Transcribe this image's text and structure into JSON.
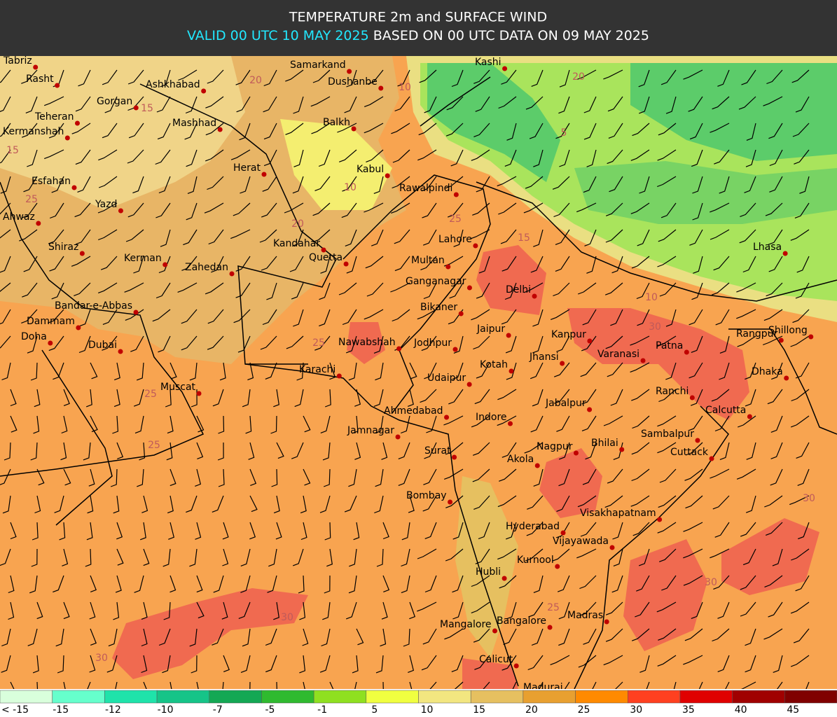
{
  "header": {
    "title": "TEMPERATURE 2m and SURFACE WIND",
    "valid": "VALID 00 UTC 10 MAY 2025",
    "based": "BASED ON 00 UTC DATA ON 09 MAY 2025"
  },
  "cities": [
    "Tabriz",
    "Rasht",
    "Gorgan",
    "Ashkhabad",
    "Samarkand",
    "Dushanbe",
    "Kashi",
    "Teheran",
    "Kermanshah",
    "Mashhad",
    "Balkh",
    "Herat",
    "Kabul",
    "Esfahan",
    "Rawalpindi",
    "Yazd",
    "Ahwaz",
    "Lahore",
    "Kandahar",
    "Quetta",
    "Multan",
    "Shiraz",
    "Kerman",
    "Zahedan",
    "Ganganagar",
    "Delhi",
    "Lhasa",
    "Bikaner",
    "Bandar-e-Abbas",
    "Dammam",
    "Doha",
    "Dubai",
    "Jaipur",
    "Kanpur",
    "Rangpur",
    "Shillong",
    "Patna",
    "Nawabshah",
    "Jodhpur",
    "Varanasi",
    "Jhansi",
    "Kotah",
    "Karachi",
    "Dhaka",
    "Udaipur",
    "Muscat",
    "Ranchi",
    "Jabalpur",
    "Calcutta",
    "Ahmedabad",
    "Indore",
    "Jamnagar",
    "Sambalpur",
    "Surat",
    "Nagpur",
    "Bhilai",
    "Cuttack",
    "Akola",
    "Bombay",
    "Visakhapatnam",
    "Hyderabad",
    "Vijayawada",
    "Kurnool",
    "Hubli",
    "Madras",
    "Mangalore",
    "Bangalore",
    "Calicut",
    "Madurai"
  ],
  "contour_labels": [
    "20",
    "15",
    "15",
    "25",
    "10",
    "10",
    "20",
    "25",
    "15",
    "30",
    "25",
    "25",
    "25",
    "30",
    "30",
    "30",
    "25",
    "10",
    "5",
    "20",
    "30"
  ],
  "legend": {
    "items": [
      {
        "label": "< -15",
        "color": "#d9ffdc"
      },
      {
        "label": "-15",
        "color": "#66ffcc"
      },
      {
        "label": "-12",
        "color": "#1fe3aa"
      },
      {
        "label": "-10",
        "color": "#16c488"
      },
      {
        "label": "-7",
        "color": "#14a854"
      },
      {
        "label": "-5",
        "color": "#2fba2f"
      },
      {
        "label": "-1",
        "color": "#8fe020"
      },
      {
        "label": "5",
        "color": "#f0ff40"
      },
      {
        "label": "10",
        "color": "#f2e680"
      },
      {
        "label": "15",
        "color": "#e6c060"
      },
      {
        "label": "20",
        "color": "#e8a030"
      },
      {
        "label": "25",
        "color": "#ff8a00"
      },
      {
        "label": "30",
        "color": "#ff4020"
      },
      {
        "label": "35",
        "color": "#e00000"
      },
      {
        "label": "40",
        "color": "#a00000"
      },
      {
        "label": "45",
        "color": "#800000"
      }
    ]
  }
}
